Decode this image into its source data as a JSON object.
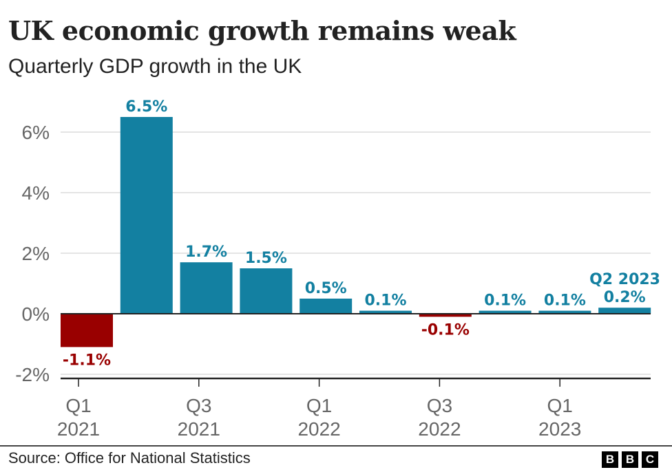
{
  "chart_data": {
    "type": "bar",
    "title": "UK economic growth remains weak",
    "subtitle": "Quarterly GDP growth in the UK",
    "categories": [
      "Q1 2021",
      "Q2 2021",
      "Q3 2021",
      "Q4 2021",
      "Q1 2022",
      "Q2 2022",
      "Q3 2022",
      "Q4 2022",
      "Q1 2023",
      "Q2 2023"
    ],
    "values": [
      -1.1,
      6.5,
      1.7,
      1.5,
      0.5,
      0.1,
      -0.1,
      0.1,
      0.1,
      0.2
    ],
    "data_labels": [
      "-1.1%",
      "6.5%",
      "1.7%",
      "1.5%",
      "0.5%",
      "0.1%",
      "-0.1%",
      "0.1%",
      "0.1%",
      "0.2%"
    ],
    "x_ticks": [
      {
        "index": 0,
        "line1": "Q1",
        "line2": "2021"
      },
      {
        "index": 2,
        "line1": "Q3",
        "line2": "2021"
      },
      {
        "index": 4,
        "line1": "Q1",
        "line2": "2022"
      },
      {
        "index": 6,
        "line1": "Q3",
        "line2": "2022"
      },
      {
        "index": 8,
        "line1": "Q1",
        "line2": "2023"
      }
    ],
    "y_ticks": [
      -2,
      0,
      2,
      4,
      6
    ],
    "y_tick_labels": [
      "-2%",
      "0%",
      "2%",
      "4%",
      "6%"
    ],
    "ylim": [
      -2,
      6.5
    ],
    "grid": true,
    "annotation": {
      "index": 9,
      "text": "Q2 2023"
    },
    "colors": {
      "positive": "#1380A1",
      "negative": "#990000",
      "grid": "#dcdcdc",
      "axis": "#222222",
      "tick_label": "#666666"
    }
  },
  "footer": {
    "source": "Source: Office for National Statistics",
    "logo": [
      "B",
      "B",
      "C"
    ]
  }
}
